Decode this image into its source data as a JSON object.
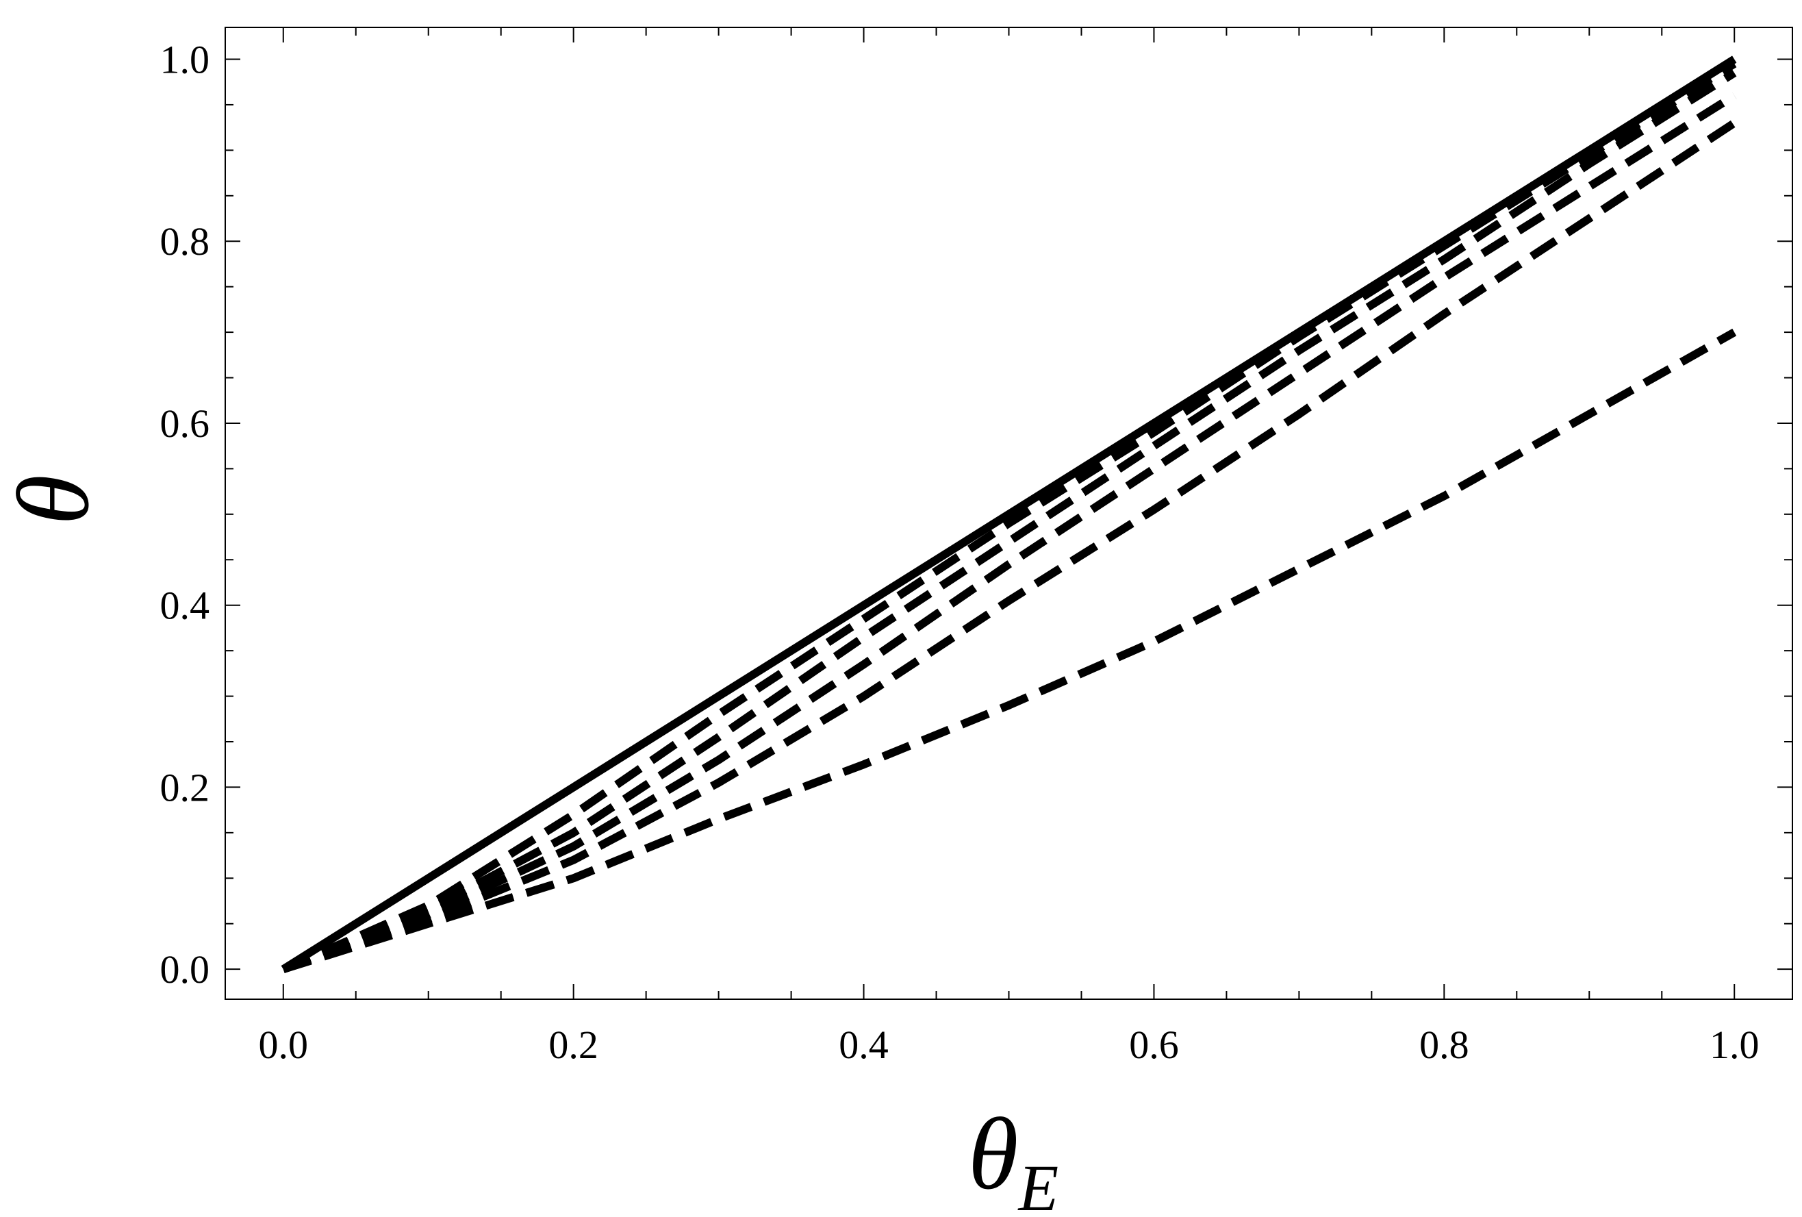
{
  "chart_data": {
    "type": "line",
    "title": "",
    "xlabel": "θ",
    "xlabel_subscript": "E",
    "ylabel": "θ",
    "xlim": [
      -0.04,
      1.04
    ],
    "ylim": [
      -0.033,
      1.035
    ],
    "xticks": [
      "0.0",
      "0.2",
      "0.4",
      "0.6",
      "0.8",
      "1.0"
    ],
    "yticks": [
      "0.0",
      "0.2",
      "0.4",
      "0.6",
      "0.8",
      "1.0"
    ],
    "grid": false,
    "legend": "none",
    "line_color": "#000000",
    "series": [
      {
        "style": "solid",
        "x": [
          0.0,
          0.1,
          0.2,
          0.3,
          0.4,
          0.5,
          0.6,
          0.7,
          0.8,
          0.9,
          1.0
        ],
        "y": [
          0.0,
          0.1,
          0.2,
          0.3,
          0.4,
          0.5,
          0.6,
          0.7,
          0.8,
          0.9,
          1.0
        ]
      },
      {
        "style": "dashed",
        "x": [
          0.0,
          0.1,
          0.2,
          0.3,
          0.4,
          0.5,
          0.6,
          0.7,
          0.8,
          0.9,
          1.0
        ],
        "y": [
          0.0,
          0.07,
          0.17,
          0.28,
          0.385,
          0.49,
          0.59,
          0.695,
          0.795,
          0.895,
          0.995
        ]
      },
      {
        "style": "dashed",
        "x": [
          0.0,
          0.1,
          0.2,
          0.3,
          0.4,
          0.5,
          0.6,
          0.7,
          0.8,
          0.9,
          1.0
        ],
        "y": [
          0.0,
          0.065,
          0.15,
          0.255,
          0.365,
          0.47,
          0.575,
          0.68,
          0.78,
          0.885,
          0.985
        ]
      },
      {
        "style": "dashed",
        "x": [
          0.0,
          0.1,
          0.2,
          0.3,
          0.4,
          0.5,
          0.6,
          0.7,
          0.8,
          0.9,
          1.0
        ],
        "y": [
          0.0,
          0.06,
          0.135,
          0.23,
          0.335,
          0.445,
          0.55,
          0.655,
          0.76,
          0.86,
          0.96
        ]
      },
      {
        "style": "dashed",
        "x": [
          0.0,
          0.1,
          0.2,
          0.3,
          0.4,
          0.5,
          0.6,
          0.7,
          0.8,
          0.9,
          1.0
        ],
        "y": [
          0.0,
          0.055,
          0.12,
          0.205,
          0.3,
          0.405,
          0.505,
          0.61,
          0.72,
          0.825,
          0.93
        ]
      },
      {
        "style": "dashed",
        "x": [
          0.0,
          0.1,
          0.2,
          0.3,
          0.4,
          0.5,
          0.6,
          0.7,
          0.8,
          0.9,
          1.0
        ],
        "y": [
          0.0,
          0.05,
          0.1,
          0.165,
          0.225,
          0.29,
          0.36,
          0.44,
          0.52,
          0.61,
          0.7
        ]
      }
    ]
  }
}
